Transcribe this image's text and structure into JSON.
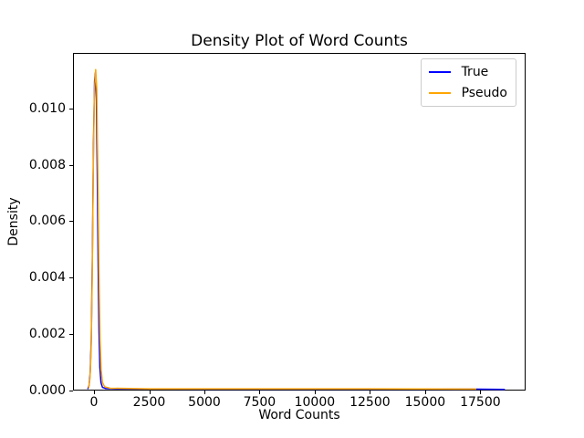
{
  "chart_data": {
    "type": "line",
    "title": "Density Plot of Word Counts",
    "xlabel": "Word Counts",
    "ylabel": "Density",
    "xlim": [
      -950,
      19550
    ],
    "ylim": [
      0,
      0.01196
    ],
    "xticks": [
      0,
      2500,
      5000,
      7500,
      10000,
      12500,
      15000,
      17500
    ],
    "xtick_labels": [
      "0",
      "2500",
      "5000",
      "7500",
      "10000",
      "12500",
      "15000",
      "17500"
    ],
    "yticks": [
      0.0,
      0.002,
      0.004,
      0.006,
      0.008,
      0.01
    ],
    "ytick_labels": [
      "0.000",
      "0.002",
      "0.004",
      "0.006",
      "0.008",
      "0.010"
    ],
    "grid": false,
    "legend": {
      "position": "upper right",
      "entries": [
        {
          "label": "True",
          "color": "#0000ff"
        },
        {
          "label": "Pseudo",
          "color": "#ffa500"
        }
      ]
    },
    "series": [
      {
        "name": "True",
        "color": "#0000ff",
        "points": [
          [
            -320,
            2e-05
          ],
          [
            -260,
            0.00015
          ],
          [
            -210,
            0.0006
          ],
          [
            -160,
            0.0018
          ],
          [
            -110,
            0.0048
          ],
          [
            -60,
            0.0088
          ],
          [
            -10,
            0.011
          ],
          [
            30,
            0.0113
          ],
          [
            70,
            0.0104
          ],
          [
            110,
            0.0078
          ],
          [
            150,
            0.0046
          ],
          [
            190,
            0.0021
          ],
          [
            230,
            0.0008
          ],
          [
            280,
            0.00025
          ],
          [
            350,
            8e-05
          ],
          [
            500,
            4e-05
          ],
          [
            1000,
            3e-05
          ],
          [
            5000,
            2e-05
          ],
          [
            10000,
            2e-05
          ],
          [
            15000,
            2e-05
          ],
          [
            17000,
            2e-05
          ],
          [
            18650,
            1e-05
          ]
        ]
      },
      {
        "name": "Pseudo",
        "color": "#ffa500",
        "points": [
          [
            -280,
            5e-05
          ],
          [
            -220,
            0.0004
          ],
          [
            -170,
            0.0013
          ],
          [
            -120,
            0.0038
          ],
          [
            -70,
            0.0078
          ],
          [
            -20,
            0.0106
          ],
          [
            40,
            0.0114
          ],
          [
            90,
            0.0107
          ],
          [
            140,
            0.0077
          ],
          [
            190,
            0.0042
          ],
          [
            240,
            0.0018
          ],
          [
            290,
            0.0007
          ],
          [
            350,
            0.00025
          ],
          [
            450,
            0.0001
          ],
          [
            700,
            5e-05
          ],
          [
            2500,
            3e-05
          ],
          [
            7500,
            3e-05
          ],
          [
            12500,
            3e-05
          ],
          [
            17350,
            2e-05
          ]
        ]
      }
    ]
  }
}
